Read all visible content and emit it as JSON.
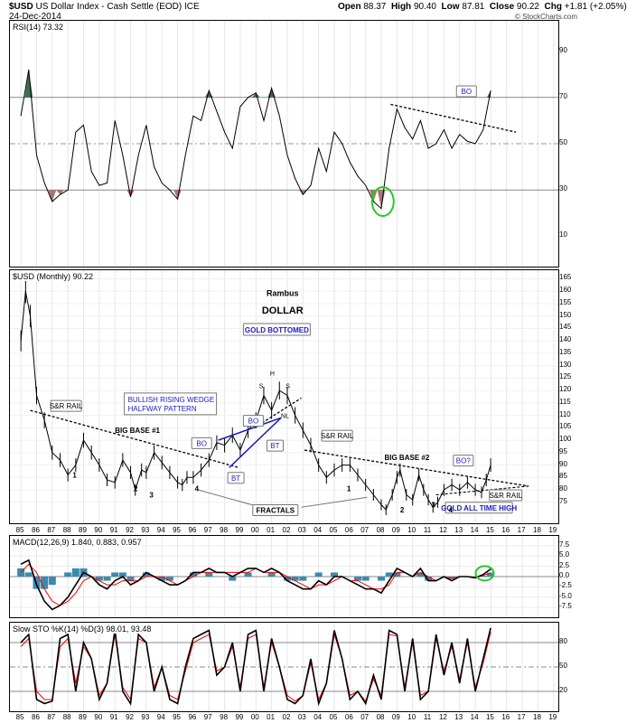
{
  "header": {
    "symbol": "$USD",
    "name": "US Dollar Index - Cash Settle (EOD)",
    "exchange": "ICE",
    "date": "24-Dec-2014",
    "open_label": "Open",
    "open": "88.37",
    "high_label": "High",
    "high": "90.40",
    "low_label": "Low",
    "low": "87.81",
    "close_label": "Close",
    "close": "90.22",
    "chg_label": "Chg",
    "chg": "+1.81 (+2.05%)",
    "watermark": "© StockCharts.com"
  },
  "colors": {
    "price": "#000000",
    "rsi_oversold_fill": "#a8756f",
    "rsi_overbought_fill": "#3f6f4a",
    "macd_signal": "#ff0000",
    "histogram": "#3a8bb0",
    "trendline_blue": "#1414c8",
    "circle": "#22cc22",
    "callout_text": "#1a1ac8",
    "grid": "#999999"
  },
  "chart_data": [
    {
      "type": "line",
      "panel": "rsi",
      "label": "RSI(14) 73.32",
      "ylim": [
        0,
        100
      ],
      "yticks": [
        90,
        70,
        50,
        30,
        10
      ],
      "reference_lines": [
        70,
        50,
        30
      ],
      "x": [
        1985,
        1985.5,
        1986,
        1986.5,
        1987,
        1987.5,
        1988,
        1988.5,
        1989,
        1989.5,
        1990,
        1990.5,
        1991,
        1991.5,
        1992,
        1992.5,
        1993,
        1993.5,
        1994,
        1994.5,
        1995,
        1995.5,
        1996,
        1996.5,
        1997,
        1997.5,
        1998,
        1998.5,
        1999,
        1999.5,
        2000,
        2000.5,
        2001,
        2001.5,
        2002,
        2002.5,
        2003,
        2003.5,
        2004,
        2004.5,
        2005,
        2005.5,
        2006,
        2006.5,
        2007,
        2007.5,
        2008,
        2008.5,
        2009,
        2009.5,
        2010,
        2010.5,
        2011,
        2011.5,
        2012,
        2012.5,
        2013,
        2013.5,
        2014,
        2014.5,
        2014.98
      ],
      "values": [
        62,
        82,
        45,
        33,
        25,
        28,
        30,
        55,
        58,
        38,
        32,
        33,
        60,
        45,
        27,
        45,
        58,
        40,
        33,
        30,
        26,
        45,
        62,
        60,
        73,
        64,
        55,
        48,
        66,
        70,
        72,
        60,
        74,
        62,
        45,
        35,
        28,
        32,
        48,
        38,
        55,
        50,
        42,
        36,
        32,
        25,
        22,
        48,
        65,
        57,
        52,
        60,
        48,
        50,
        56,
        48,
        54,
        51,
        50,
        56,
        73
      ]
    },
    {
      "type": "line",
      "panel": "price",
      "label": "$USD (Monthly) 90.22",
      "ylim": [
        68,
        167
      ],
      "yticks": [
        165,
        160,
        155,
        150,
        145,
        140,
        135,
        130,
        125,
        120,
        115,
        110,
        105,
        100,
        95,
        90,
        85,
        80,
        75
      ],
      "x": [
        1985,
        1985.3,
        1985.6,
        1986,
        1986.5,
        1987,
        1987.5,
        1988,
        1988.5,
        1989,
        1989.5,
        1990,
        1990.5,
        1991,
        1991.5,
        1992,
        1992.3,
        1992.7,
        1993,
        1993.5,
        1994,
        1994.5,
        1995,
        1995.3,
        1995.6,
        1996,
        1996.5,
        1997,
        1997.5,
        1998,
        1998.5,
        1999,
        1999.5,
        2000,
        2000.5,
        2001,
        2001.5,
        2002,
        2002.5,
        2003,
        2003.5,
        2004,
        2004.5,
        2005,
        2005.5,
        2006,
        2006.5,
        2007,
        2007.5,
        2008,
        2008.3,
        2008.7,
        2009,
        2009.2,
        2009.6,
        2010,
        2010.4,
        2010.7,
        2011,
        2011.3,
        2011.6,
        2012,
        2012.5,
        2013,
        2013.5,
        2014,
        2014.4,
        2014.7,
        2014.98
      ],
      "values": [
        140,
        160,
        150,
        118,
        108,
        95,
        92,
        86,
        90,
        100,
        95,
        90,
        84,
        83,
        92,
        87,
        80,
        88,
        87,
        95,
        91,
        87,
        83,
        82,
        85,
        85,
        88,
        92,
        99,
        98,
        102,
        96,
        104,
        108,
        118,
        112,
        120,
        118,
        110,
        104,
        98,
        90,
        85,
        88,
        90,
        90,
        86,
        82,
        78,
        74,
        72,
        78,
        85,
        88,
        78,
        76,
        86,
        80,
        76,
        73,
        75,
        80,
        82,
        80,
        83,
        80,
        79,
        84,
        90
      ]
    },
    {
      "type": "line",
      "panel": "macd",
      "label": "MACD(12,26,9) 1.840, 0.883, 0.957",
      "ylim": [
        -9,
        9
      ],
      "yticks": [
        7.5,
        5.0,
        2.5,
        0.0,
        -2.5,
        -5.0,
        -7.5
      ],
      "x": [
        1985,
        1985.5,
        1986,
        1986.5,
        1987,
        1987.5,
        1988,
        1988.5,
        1989,
        1989.5,
        1990,
        1990.5,
        1991,
        1991.5,
        1992,
        1992.5,
        1993,
        1993.5,
        1994,
        1994.5,
        1995,
        1995.5,
        1996,
        1996.5,
        1997,
        1997.5,
        1998,
        1998.5,
        1999,
        1999.5,
        2000,
        2000.5,
        2001,
        2001.5,
        2002,
        2002.5,
        2003,
        2003.5,
        2004,
        2004.5,
        2005,
        2005.5,
        2006,
        2006.5,
        2007,
        2007.5,
        2008,
        2008.5,
        2009,
        2009.5,
        2010,
        2010.5,
        2011,
        2011.5,
        2012,
        2012.5,
        2013,
        2013.5,
        2014,
        2014.5,
        2014.98
      ],
      "series": [
        {
          "name": "MACD",
          "values": [
            3,
            4,
            -2,
            -6,
            -8,
            -7,
            -5,
            -2,
            1,
            0,
            -2,
            -3,
            -1,
            0,
            -2,
            -1,
            1,
            0,
            -1,
            -2,
            -2,
            -1,
            1,
            1,
            2,
            1,
            1,
            0,
            1,
            2,
            2,
            1,
            2,
            1,
            -1,
            -2,
            -3,
            -3,
            -1,
            -2,
            0,
            0,
            -1,
            -2,
            -3,
            -3,
            -4,
            -1,
            2,
            1,
            0,
            2,
            -1,
            -1,
            0,
            -1,
            0,
            0,
            -0.3,
            0.5,
            1.84
          ]
        },
        {
          "name": "Signal",
          "values": [
            1,
            3,
            1,
            -3,
            -6,
            -7,
            -6,
            -4,
            -1,
            0,
            -1,
            -2,
            -2,
            -1,
            -1,
            -1,
            0,
            0,
            0,
            -1,
            -2,
            -1,
            0,
            1,
            1,
            1,
            1,
            1,
            1,
            1,
            2,
            1,
            1,
            1,
            0,
            -1,
            -2,
            -3,
            -2,
            -2,
            -1,
            0,
            -1,
            -1,
            -2,
            -3,
            -3,
            -2,
            1,
            1,
            0,
            1,
            0,
            -1,
            0,
            -0.5,
            0,
            0,
            -0.2,
            0.3,
            0.883
          ]
        }
      ],
      "histogram": [
        2,
        1,
        -3,
        -3,
        -2,
        0,
        1,
        2,
        2,
        0,
        -1,
        -1,
        1,
        1,
        -1,
        0,
        1,
        0,
        -1,
        -1,
        0,
        0,
        1,
        0,
        1,
        0,
        0,
        -1,
        0,
        1,
        0,
        0,
        1,
        0,
        -1,
        -1,
        -1,
        0,
        1,
        0,
        1,
        0,
        0,
        -1,
        -1,
        0,
        -1,
        1,
        1,
        0,
        0,
        1,
        -1,
        0,
        0,
        -0.5,
        0,
        0,
        -0.1,
        0.2,
        0.957
      ]
    },
    {
      "type": "line",
      "panel": "stochastic",
      "label": "Slow STO %K(14) %D(3) 98.01, 93.48",
      "ylim": [
        0,
        100
      ],
      "yticks": [
        80,
        50,
        20
      ],
      "reference_lines": [
        80,
        50,
        20
      ],
      "x": [
        1985,
        1985.5,
        1986,
        1986.5,
        1987,
        1987.5,
        1988,
        1988.5,
        1989,
        1989.5,
        1990,
        1990.5,
        1991,
        1991.5,
        1992,
        1992.5,
        1993,
        1993.5,
        1994,
        1994.5,
        1995,
        1995.5,
        1996,
        1996.5,
        1997,
        1997.5,
        1998,
        1998.5,
        1999,
        1999.5,
        2000,
        2000.5,
        2001,
        2001.5,
        2002,
        2002.5,
        2003,
        2003.5,
        2004,
        2004.5,
        2005,
        2005.5,
        2006,
        2006.5,
        2007,
        2007.5,
        2008,
        2008.5,
        2009,
        2009.5,
        2010,
        2010.5,
        2011,
        2011.5,
        2012,
        2012.5,
        2013,
        2013.5,
        2014,
        2014.5,
        2014.98
      ],
      "series": [
        {
          "name": "%K",
          "values": [
            80,
            90,
            10,
            5,
            8,
            85,
            90,
            20,
            80,
            60,
            10,
            30,
            95,
            20,
            5,
            90,
            80,
            20,
            50,
            10,
            5,
            50,
            85,
            90,
            95,
            40,
            50,
            80,
            20,
            90,
            95,
            20,
            85,
            50,
            10,
            5,
            15,
            60,
            5,
            30,
            95,
            60,
            10,
            20,
            5,
            40,
            10,
            95,
            90,
            20,
            85,
            10,
            20,
            90,
            40,
            80,
            30,
            85,
            20,
            60,
            98
          ]
        },
        {
          "name": "%D",
          "values": [
            75,
            85,
            20,
            10,
            10,
            75,
            85,
            30,
            75,
            60,
            15,
            30,
            90,
            25,
            10,
            85,
            80,
            25,
            50,
            15,
            10,
            45,
            80,
            85,
            90,
            45,
            50,
            75,
            25,
            85,
            90,
            25,
            80,
            50,
            15,
            8,
            15,
            55,
            10,
            30,
            90,
            60,
            15,
            20,
            8,
            35,
            15,
            90,
            88,
            25,
            80,
            15,
            20,
            85,
            45,
            75,
            35,
            80,
            25,
            55,
            93
          ]
        }
      ]
    }
  ],
  "x_axis": {
    "year_labels": [
      "85",
      "86",
      "87",
      "88",
      "89",
      "90",
      "91",
      "92",
      "93",
      "94",
      "95",
      "96",
      "97",
      "98",
      "99",
      "00",
      "01",
      "02",
      "03",
      "04",
      "05",
      "06",
      "07",
      "08",
      "09",
      "10",
      "11",
      "12",
      "13",
      "14",
      "15",
      "16",
      "17",
      "18",
      "19"
    ]
  },
  "annotations": {
    "rsi_bo": "BO",
    "rambus": "Rambus",
    "dollar": "DOLLAR",
    "gold_bottomed": "GOLD BOTTOMED",
    "sr_rail_left": "S&R RAIL",
    "big_base_1": "BIG BASE #1",
    "wedge_line1": "BULLISH RISING WEDGE",
    "wedge_line2": "HALFWAY PATTERN",
    "bo_1": "BO",
    "bo_2": "BO",
    "bt_1": "BT",
    "bt_2": "BT",
    "h": "H",
    "s1": "S",
    "s2": "S",
    "nl": "NL",
    "sr_rail_mid": "S&R RAIL",
    "big_base_2": "BIG BASE #2",
    "bo_q": "BO?",
    "sr_rail_right": "S&R RAIL",
    "gold_ath": "GOLD ALL TIME HIGH",
    "fractals": "FRACTALS",
    "n1a": "1",
    "n2a": "2",
    "n3a": "3",
    "n4a": "4",
    "n1b": "1",
    "n2b": "2",
    "n3b": "3",
    "n4b": "4"
  }
}
